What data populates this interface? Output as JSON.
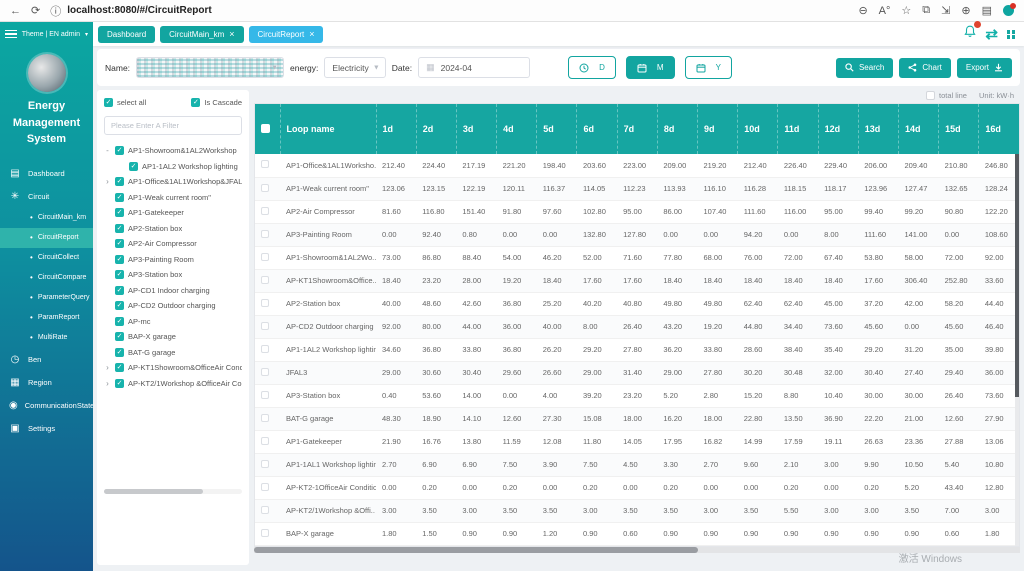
{
  "browser": {
    "url": "localhost:8080/#/CircuitReport"
  },
  "topbar": {
    "user_menu": "Theme | EN   admin"
  },
  "tabs": [
    {
      "label": "Dashboard",
      "closable": false,
      "active": false
    },
    {
      "label": "CircuitMain_km",
      "closable": true,
      "active": false
    },
    {
      "label": "CircuitReport",
      "closable": true,
      "active": true
    }
  ],
  "sidebar": {
    "title": "Energy Management System",
    "menu": [
      {
        "label": "Dashboard",
        "icon": "dashboard-icon"
      },
      {
        "label": "Circuit",
        "icon": "circuit-icon",
        "expanded": true,
        "children": [
          {
            "label": "CircuitMain_km",
            "active": false
          },
          {
            "label": "CircuitReport",
            "active": true
          },
          {
            "label": "CircuitCollect",
            "active": false
          },
          {
            "label": "CircuitCompare",
            "active": false
          },
          {
            "label": "ParameterQuery",
            "active": false
          },
          {
            "label": "ParamReport",
            "active": false
          },
          {
            "label": "MultiRate",
            "active": false
          }
        ]
      },
      {
        "label": "Ben",
        "icon": "alarm-icon"
      },
      {
        "label": "Region",
        "icon": "region-icon"
      },
      {
        "label": "CommunicationState",
        "icon": "location-icon"
      },
      {
        "label": "Settings",
        "icon": "settings-icon"
      }
    ]
  },
  "filter": {
    "name_label": "Name:",
    "energy_label": "energy:",
    "energy_value": "Electricity",
    "date_label": "Date:",
    "date_value": "2024-04",
    "range_buttons": [
      {
        "label": "D",
        "icon": "clock-icon",
        "active": false
      },
      {
        "label": "M",
        "icon": "calendar-icon",
        "active": true
      },
      {
        "label": "Y",
        "icon": "calendar-icon",
        "active": false
      }
    ],
    "search_label": "Search",
    "chart_label": "Chart",
    "export_label": "Export"
  },
  "tree": {
    "select_all_label": "select all",
    "cascade_label": "Is Cascade",
    "filter_placeholder": "Please Enter A Filter",
    "items": [
      {
        "label": "AP1-Showroom&1AL2Workshop",
        "level": 0,
        "expand": "-"
      },
      {
        "label": "AP1-1AL2 Workshop lighting",
        "level": 1,
        "expand": ""
      },
      {
        "label": "AP1-Office&1AL1Workshop&JFAL3",
        "level": 0,
        "expand": "›"
      },
      {
        "label": "AP1-Weak current room\"",
        "level": 0,
        "expand": ""
      },
      {
        "label": "AP1-Gatekeeper",
        "level": 0,
        "expand": ""
      },
      {
        "label": "AP2-Station box",
        "level": 0,
        "expand": ""
      },
      {
        "label": "AP2-Air Compressor",
        "level": 0,
        "expand": ""
      },
      {
        "label": "AP3-Painting Room",
        "level": 0,
        "expand": ""
      },
      {
        "label": "AP3-Station box",
        "level": 0,
        "expand": ""
      },
      {
        "label": "AP-CD1 Indoor charging",
        "level": 0,
        "expand": ""
      },
      {
        "label": "AP-CD2 Outdoor charging",
        "level": 0,
        "expand": ""
      },
      {
        "label": "AP-mc",
        "level": 0,
        "expand": ""
      },
      {
        "label": "BAP-X garage",
        "level": 0,
        "expand": ""
      },
      {
        "label": "BAT-G garage",
        "level": 0,
        "expand": ""
      },
      {
        "label": "AP-KT1Showroom&OfficeAir Condi",
        "level": 0,
        "expand": "›"
      },
      {
        "label": "AP-KT2/1Workshop &OfficeAir Con",
        "level": 0,
        "expand": "›"
      }
    ]
  },
  "table": {
    "total_line_label": "total line",
    "unit_label": "Unit: kW·h",
    "name_header": "Loop name",
    "columns": [
      "1d",
      "2d",
      "3d",
      "4d",
      "5d",
      "6d",
      "7d",
      "8d",
      "9d",
      "10d",
      "11d",
      "12d",
      "13d",
      "14d",
      "15d",
      "16d"
    ],
    "rows": [
      {
        "name": "AP1-Office&1AL1Worksho...",
        "values": [
          "212.40",
          "224.40",
          "217.19",
          "221.20",
          "198.40",
          "203.60",
          "223.00",
          "209.00",
          "219.20",
          "212.40",
          "226.40",
          "229.40",
          "206.00",
          "209.40",
          "210.80",
          "246.80"
        ]
      },
      {
        "name": "AP1-Weak current room\"",
        "values": [
          "123.06",
          "123.15",
          "122.19",
          "120.11",
          "116.37",
          "114.05",
          "112.23",
          "113.93",
          "116.10",
          "116.28",
          "118.15",
          "118.17",
          "123.96",
          "127.47",
          "132.65",
          "128.24"
        ]
      },
      {
        "name": "AP2-Air Compressor",
        "values": [
          "81.60",
          "116.80",
          "151.40",
          "91.80",
          "97.60",
          "102.80",
          "95.00",
          "86.00",
          "107.40",
          "111.60",
          "116.00",
          "95.00",
          "99.40",
          "99.20",
          "90.80",
          "122.20"
        ]
      },
      {
        "name": "AP3-Painting Room",
        "values": [
          "0.00",
          "92.40",
          "0.80",
          "0.00",
          "0.00",
          "132.80",
          "127.80",
          "0.00",
          "0.00",
          "94.20",
          "0.00",
          "8.00",
          "111.60",
          "141.00",
          "0.00",
          "108.60"
        ]
      },
      {
        "name": "AP1-Showroom&1AL2Wo...",
        "values": [
          "73.00",
          "86.80",
          "88.40",
          "54.00",
          "46.20",
          "52.00",
          "71.60",
          "77.80",
          "68.00",
          "76.00",
          "72.00",
          "67.40",
          "53.80",
          "58.00",
          "72.00",
          "92.00"
        ]
      },
      {
        "name": "AP-KT1Showroom&Office...",
        "values": [
          "18.40",
          "23.20",
          "28.00",
          "19.20",
          "18.40",
          "17.60",
          "17.60",
          "18.40",
          "18.40",
          "18.40",
          "18.40",
          "18.40",
          "17.60",
          "306.40",
          "252.80",
          "33.60"
        ]
      },
      {
        "name": "AP2-Station box",
        "values": [
          "40.00",
          "48.60",
          "42.60",
          "36.80",
          "25.20",
          "40.20",
          "40.80",
          "49.80",
          "49.80",
          "62.40",
          "62.40",
          "45.00",
          "37.20",
          "42.00",
          "58.20",
          "44.40"
        ]
      },
      {
        "name": "AP-CD2 Outdoor charging",
        "values": [
          "92.00",
          "80.00",
          "44.00",
          "36.00",
          "40.00",
          "8.00",
          "26.40",
          "43.20",
          "19.20",
          "44.80",
          "34.40",
          "73.60",
          "45.60",
          "0.00",
          "45.60",
          "46.40"
        ]
      },
      {
        "name": "AP1-1AL2 Workshop lighting",
        "values": [
          "34.60",
          "36.80",
          "33.80",
          "36.80",
          "26.20",
          "29.20",
          "27.80",
          "36.20",
          "33.80",
          "28.60",
          "38.40",
          "35.40",
          "29.20",
          "31.20",
          "35.00",
          "39.80"
        ]
      },
      {
        "name": "JFAL3",
        "values": [
          "29.00",
          "30.60",
          "30.40",
          "29.60",
          "26.60",
          "29.00",
          "31.40",
          "29.00",
          "27.80",
          "30.20",
          "30.48",
          "32.00",
          "30.40",
          "27.40",
          "29.40",
          "36.00"
        ]
      },
      {
        "name": "AP3-Station box",
        "values": [
          "0.40",
          "53.60",
          "14.00",
          "0.00",
          "4.00",
          "39.20",
          "23.20",
          "5.20",
          "2.80",
          "15.20",
          "8.80",
          "10.40",
          "30.00",
          "30.00",
          "26.40",
          "73.60"
        ]
      },
      {
        "name": "BAT-G garage",
        "values": [
          "48.30",
          "18.90",
          "14.10",
          "12.60",
          "27.30",
          "15.08",
          "18.00",
          "16.20",
          "18.00",
          "22.80",
          "13.50",
          "36.90",
          "22.20",
          "21.00",
          "12.60",
          "27.90"
        ]
      },
      {
        "name": "AP1-Gatekeeper",
        "values": [
          "21.90",
          "16.76",
          "13.80",
          "11.59",
          "12.08",
          "11.80",
          "14.05",
          "17.95",
          "16.82",
          "14.99",
          "17.59",
          "19.11",
          "26.63",
          "23.36",
          "27.88",
          "13.06"
        ]
      },
      {
        "name": "AP1-1AL1 Workshop lighting",
        "values": [
          "2.70",
          "6.90",
          "6.90",
          "7.50",
          "3.90",
          "7.50",
          "4.50",
          "3.30",
          "2.70",
          "9.60",
          "2.10",
          "3.00",
          "9.90",
          "10.50",
          "5.40",
          "10.80"
        ]
      },
      {
        "name": "AP-KT2-1OfficeAir Condition",
        "values": [
          "0.00",
          "0.20",
          "0.00",
          "0.20",
          "0.00",
          "0.20",
          "0.00",
          "0.20",
          "0.00",
          "0.00",
          "0.20",
          "0.00",
          "0.20",
          "5.20",
          "43.40",
          "12.80"
        ]
      },
      {
        "name": "AP-KT2/1Workshop &Offi..",
        "values": [
          "3.00",
          "3.50",
          "3.00",
          "3.50",
          "3.50",
          "3.00",
          "3.50",
          "3.50",
          "3.00",
          "3.50",
          "5.50",
          "3.00",
          "3.00",
          "3.50",
          "7.00",
          "3.00"
        ]
      },
      {
        "name": "BAP-X garage",
        "values": [
          "1.80",
          "1.50",
          "0.90",
          "0.90",
          "1.20",
          "0.90",
          "0.60",
          "0.90",
          "0.90",
          "0.90",
          "0.90",
          "0.90",
          "0.90",
          "0.90",
          "0.60",
          "1.80"
        ]
      }
    ]
  },
  "watermark": "激活 Windows"
}
